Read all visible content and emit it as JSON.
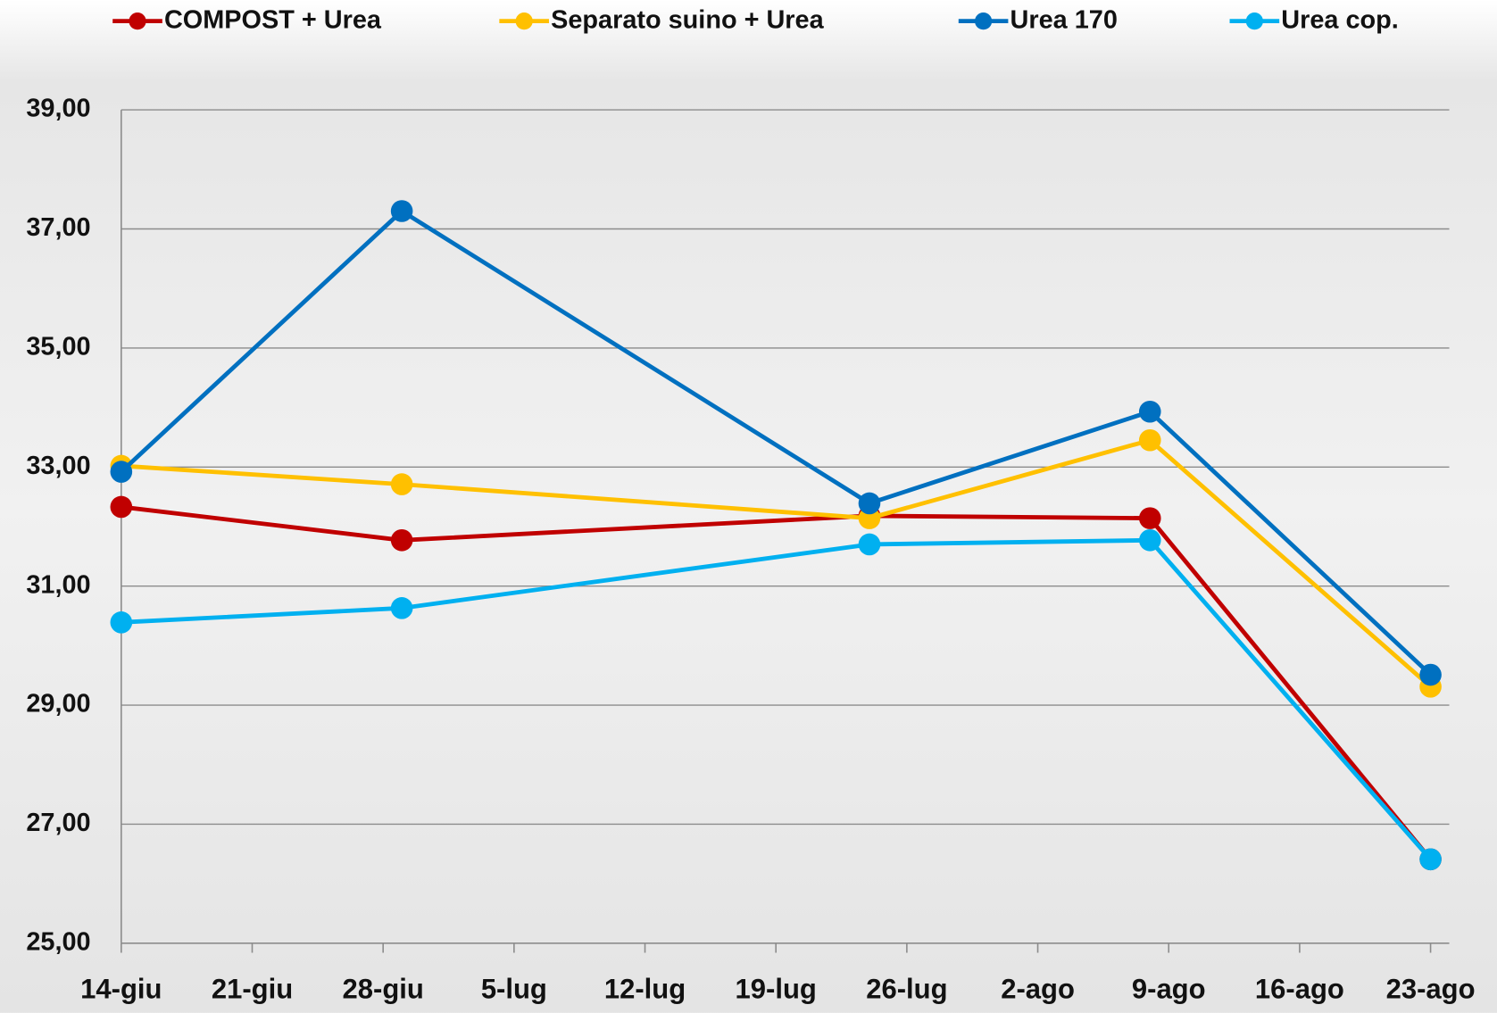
{
  "chart_data": {
    "type": "line",
    "x": [
      0,
      15,
      40,
      55,
      70
    ],
    "xlim": [
      0,
      71
    ],
    "xticks": [
      {
        "value": 0,
        "label": "14-giu"
      },
      {
        "value": 7,
        "label": "21-giu"
      },
      {
        "value": 14,
        "label": "28-giu"
      },
      {
        "value": 21,
        "label": "5-lug"
      },
      {
        "value": 28,
        "label": "12-lug"
      },
      {
        "value": 35,
        "label": "19-lug"
      },
      {
        "value": 42,
        "label": "26-lug"
      },
      {
        "value": 49,
        "label": "2-ago"
      },
      {
        "value": 56,
        "label": "9-ago"
      },
      {
        "value": 63,
        "label": "16-ago"
      },
      {
        "value": 70,
        "label": "23-ago"
      }
    ],
    "ylim": [
      25,
      39
    ],
    "yticks": [
      {
        "value": 25,
        "label": "25,00"
      },
      {
        "value": 27,
        "label": "27,00"
      },
      {
        "value": 29,
        "label": "29,00"
      },
      {
        "value": 31,
        "label": "31,00"
      },
      {
        "value": 33,
        "label": "33,00"
      },
      {
        "value": 35,
        "label": "35,00"
      },
      {
        "value": 37,
        "label": "37,00"
      },
      {
        "value": 39,
        "label": "39,00"
      }
    ],
    "grid": true,
    "legend": "top",
    "series": [
      {
        "name": "COMPOST + Urea",
        "color": "#c00000",
        "values": [
          32.33,
          31.77,
          32.18,
          32.14,
          26.41
        ]
      },
      {
        "name": "Separato  suino + Urea",
        "color": "#ffc000",
        "values": [
          33.02,
          32.71,
          32.14,
          33.45,
          29.31
        ]
      },
      {
        "name": "Urea 170",
        "color": "#0070c0",
        "values": [
          32.92,
          37.3,
          32.39,
          33.93,
          29.51
        ]
      },
      {
        "name": "Urea cop.",
        "color": "#00b0f0",
        "values": [
          30.39,
          30.63,
          31.7,
          31.77,
          26.41
        ]
      }
    ]
  }
}
